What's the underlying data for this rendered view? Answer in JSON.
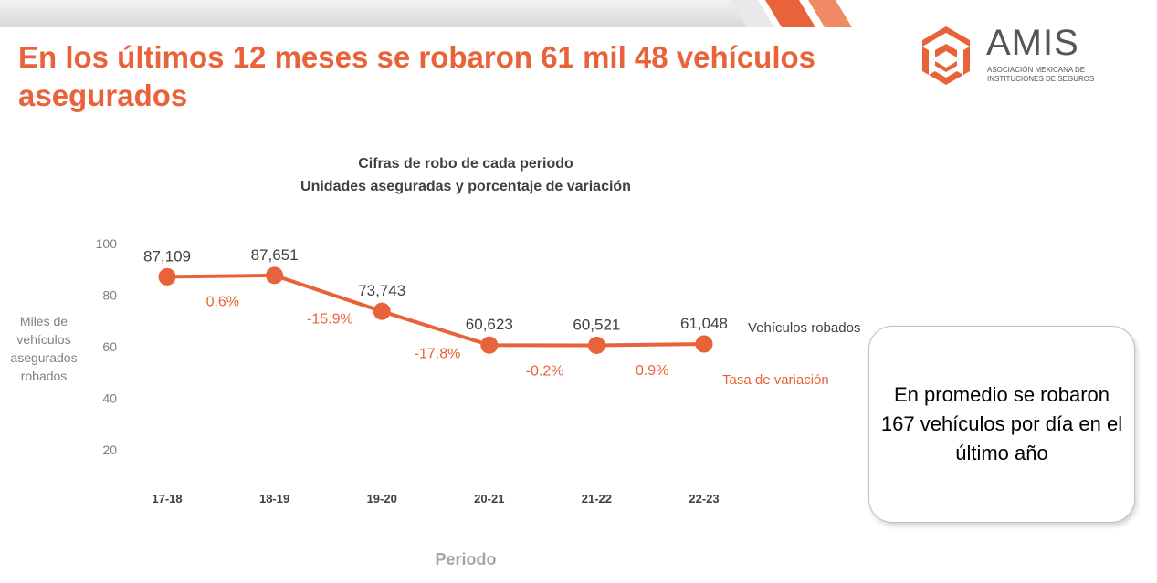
{
  "page": {
    "title": "En los últimos 12 meses se robaron 61 mil 48 vehículos asegurados"
  },
  "logo": {
    "name": "AMIS",
    "subtitle_line1": "ASOCIACIÓN MEXICANA DE",
    "subtitle_line2": "INSTITUCIONES DE SEGUROS"
  },
  "colors": {
    "accent": "#E8623A",
    "axis_text": "#7f7f7f",
    "label_text": "#404040"
  },
  "callout": {
    "text": "En promedio se robaron 167 vehículos por día en el último año"
  },
  "chart_data": {
    "type": "line",
    "title": "Cifras de robo de cada periodo",
    "subtitle": "Unidades aseguradas y porcentaje de variación",
    "xlabel": "Periodo",
    "ylabel": "Miles de vehículos asegurados robados",
    "ylim": [
      0,
      100
    ],
    "yticks": [
      20,
      40,
      60,
      80,
      100
    ],
    "categories": [
      "17-18",
      "18-19",
      "19-20",
      "20-21",
      "21-22",
      "22-23"
    ],
    "series": [
      {
        "name": "Vehículos robados",
        "values": [
          87.109,
          87.651,
          73.743,
          60.623,
          60.521,
          61.048
        ],
        "value_labels": [
          "87,109",
          "87,651",
          "73,743",
          "60,623",
          "60,521",
          "61,048"
        ]
      }
    ],
    "variation": {
      "name": "Tasa de variación",
      "labels": [
        "0.6%",
        "-15.9%",
        "-17.8%",
        "-0.2%",
        "0.9%"
      ]
    }
  }
}
